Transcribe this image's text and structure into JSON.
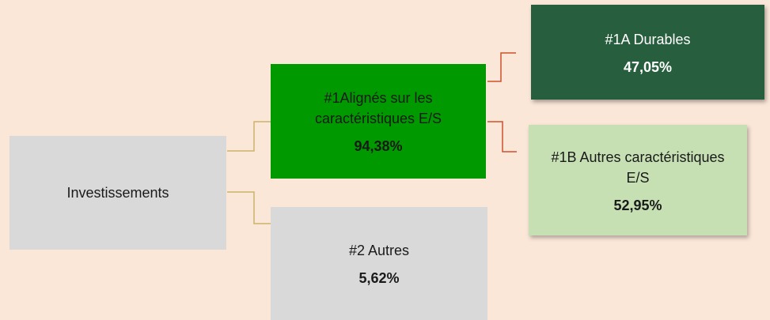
{
  "nodes": [
    {
      "label": [
        "Investissements"
      ]
    },
    {
      "label": [
        "#1Alignés sur les",
        "caractéristiques  E/S"
      ],
      "value": "94,38%"
    },
    {
      "label": [
        "#2 Autres"
      ],
      "value": "5,62%"
    },
    {
      "label": [
        "#1A Durables"
      ],
      "value": "47,05%"
    },
    {
      "label": [
        "#1B Autres caractéristiques",
        "E/S"
      ],
      "value": "52,95%"
    }
  ]
}
